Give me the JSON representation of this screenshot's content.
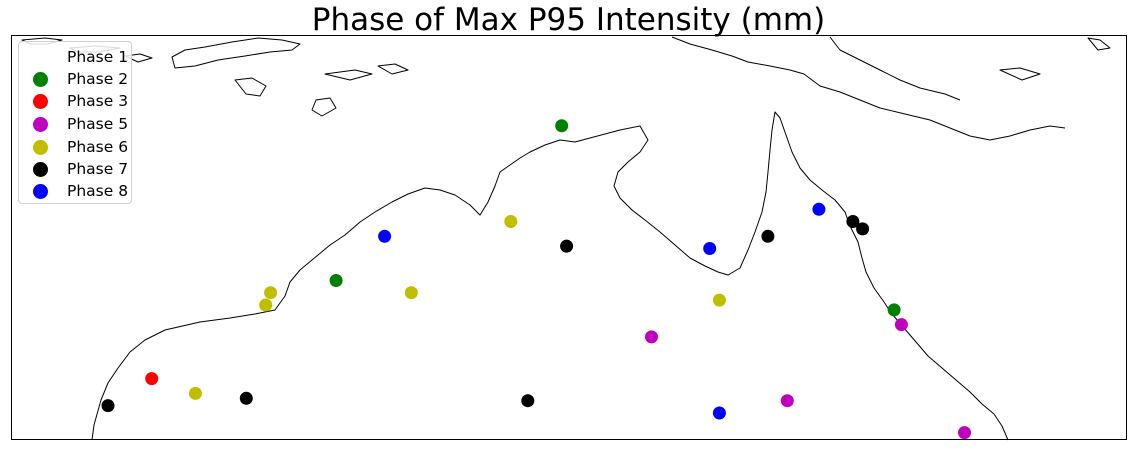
{
  "title": "Phase of Max P95 Intensity (mm)",
  "legend": [
    {
      "label": "Phase 1",
      "color": "#ffffff"
    },
    {
      "label": "Phase 2",
      "color": "#008000"
    },
    {
      "label": "Phase 3",
      "color": "#ff0000"
    },
    {
      "label": "Phase 5",
      "color": "#bf00bf"
    },
    {
      "label": "Phase 6",
      "color": "#bfbf00"
    },
    {
      "label": "Phase 7",
      "color": "#000000"
    },
    {
      "label": "Phase 8",
      "color": "#0000ff"
    }
  ],
  "chart_data": {
    "type": "scatter",
    "title": "Phase of Max P95 Intensity (mm)",
    "xlim": [
      110,
      156
    ],
    "ylim": [
      -26,
      -9.5
    ],
    "legend_position": "top-left",
    "grid": false,
    "series": [
      {
        "name": "Phase 2",
        "color": "#008000",
        "points": [
          [
            132.7,
            -13.2
          ],
          [
            123.4,
            -19.5
          ],
          [
            146.4,
            -20.7
          ]
        ]
      },
      {
        "name": "Phase 3",
        "color": "#ff0000",
        "points": [
          [
            115.8,
            -23.5
          ]
        ]
      },
      {
        "name": "Phase 5",
        "color": "#bf00bf",
        "points": [
          [
            136.4,
            -21.8
          ],
          [
            146.7,
            -21.3
          ],
          [
            142.0,
            -24.4
          ],
          [
            149.3,
            -25.7
          ]
        ]
      },
      {
        "name": "Phase 6",
        "color": "#bfbf00",
        "points": [
          [
            120.7,
            -20.0
          ],
          [
            120.5,
            -20.5
          ],
          [
            126.5,
            -20.0
          ],
          [
            130.6,
            -17.1
          ],
          [
            139.2,
            -20.3
          ],
          [
            117.6,
            -24.1
          ]
        ]
      },
      {
        "name": "Phase 7",
        "color": "#000000",
        "points": [
          [
            114.0,
            -24.6
          ],
          [
            119.7,
            -24.3
          ],
          [
            131.3,
            -24.4
          ],
          [
            132.9,
            -18.1
          ],
          [
            141.2,
            -17.7
          ],
          [
            144.7,
            -17.1
          ],
          [
            145.1,
            -17.4
          ]
        ]
      },
      {
        "name": "Phase 8",
        "color": "#0000ff",
        "points": [
          [
            125.4,
            -17.7
          ],
          [
            138.8,
            -18.2
          ],
          [
            143.3,
            -16.6
          ],
          [
            139.2,
            -24.9
          ]
        ]
      }
    ]
  }
}
